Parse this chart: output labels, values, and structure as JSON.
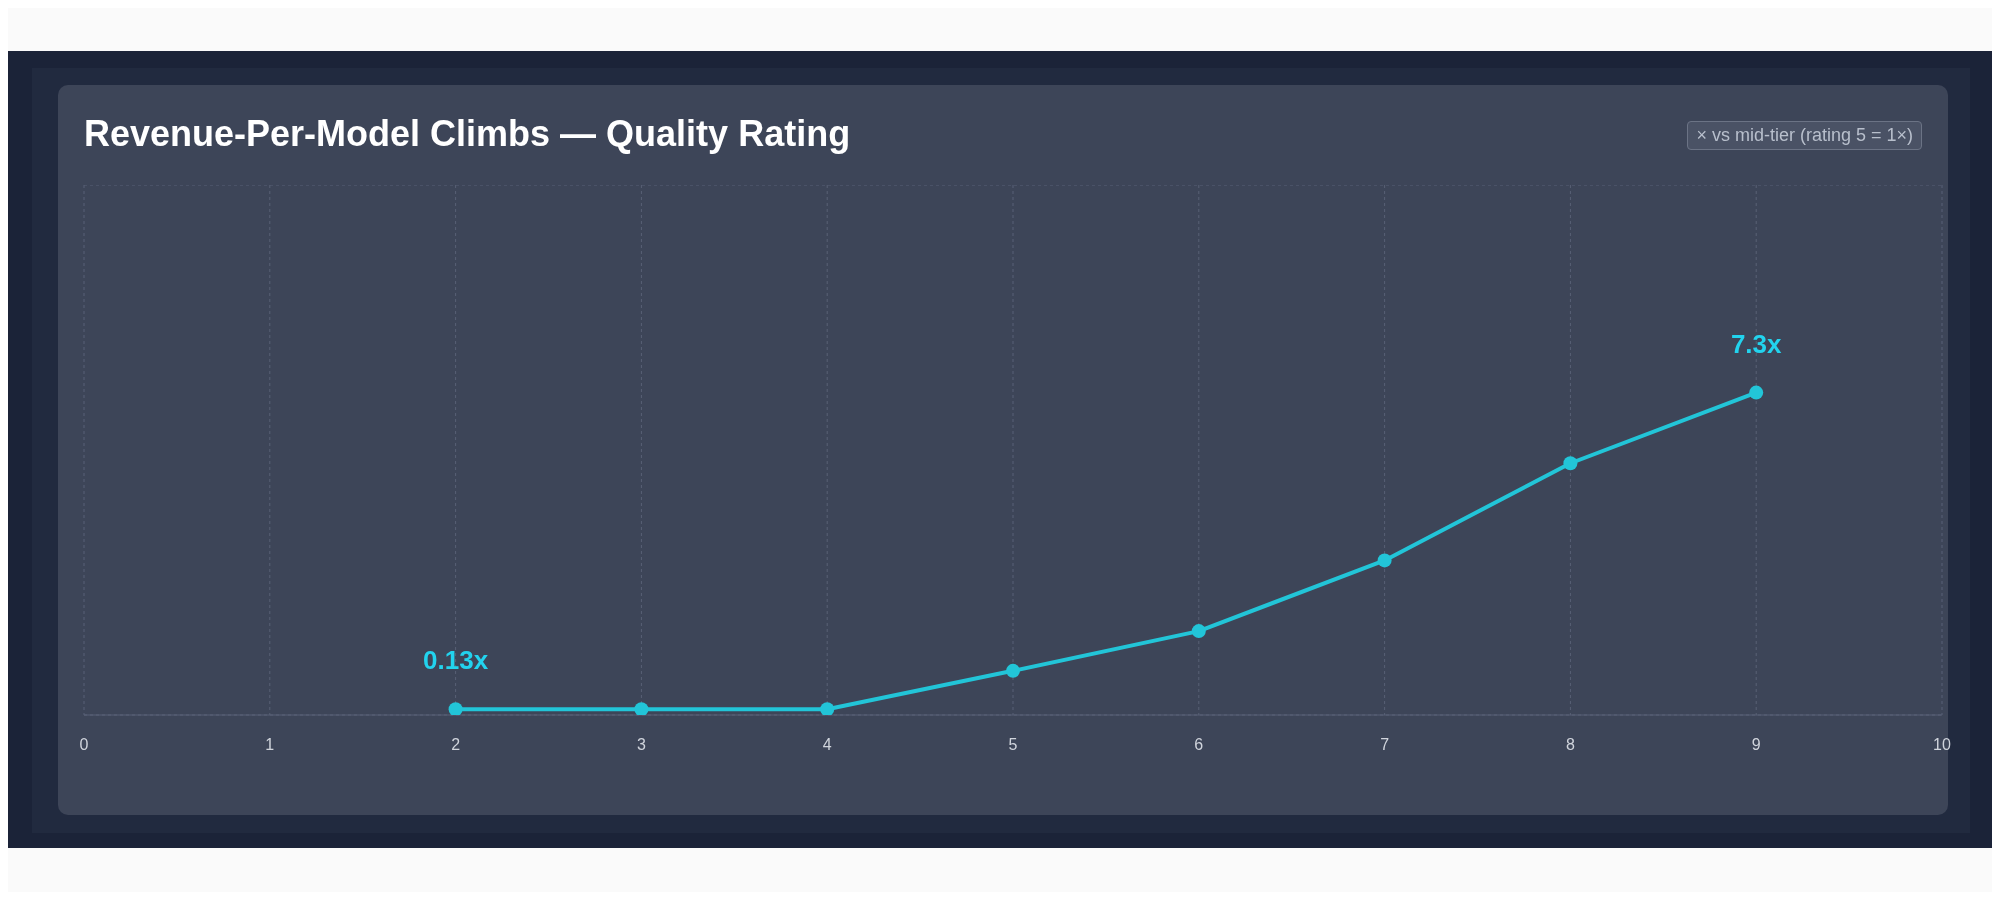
{
  "chart_data": {
    "type": "line",
    "title": "Revenue-Per-Model Climbs — Quality Rating",
    "annotations": [
      "× vs mid-tier (rating 5 = 1×)"
    ],
    "x": [
      2,
      3,
      4,
      5,
      6,
      7,
      8,
      9
    ],
    "values": [
      0.13,
      0.13,
      0.13,
      1.0,
      1.9,
      3.5,
      5.7,
      7.3
    ],
    "value_labels": [
      "0.13x",
      null,
      null,
      null,
      null,
      null,
      null,
      "7.3x"
    ],
    "color": "#22c5d8",
    "xlim": [
      0,
      10
    ],
    "xticks": [
      0,
      1,
      2,
      3,
      4,
      5,
      6,
      7,
      8,
      9,
      10
    ],
    "ylim": [
      0,
      12
    ],
    "tick_labels": "x",
    "grid": true,
    "marker": "circle",
    "line_style": "solid"
  }
}
